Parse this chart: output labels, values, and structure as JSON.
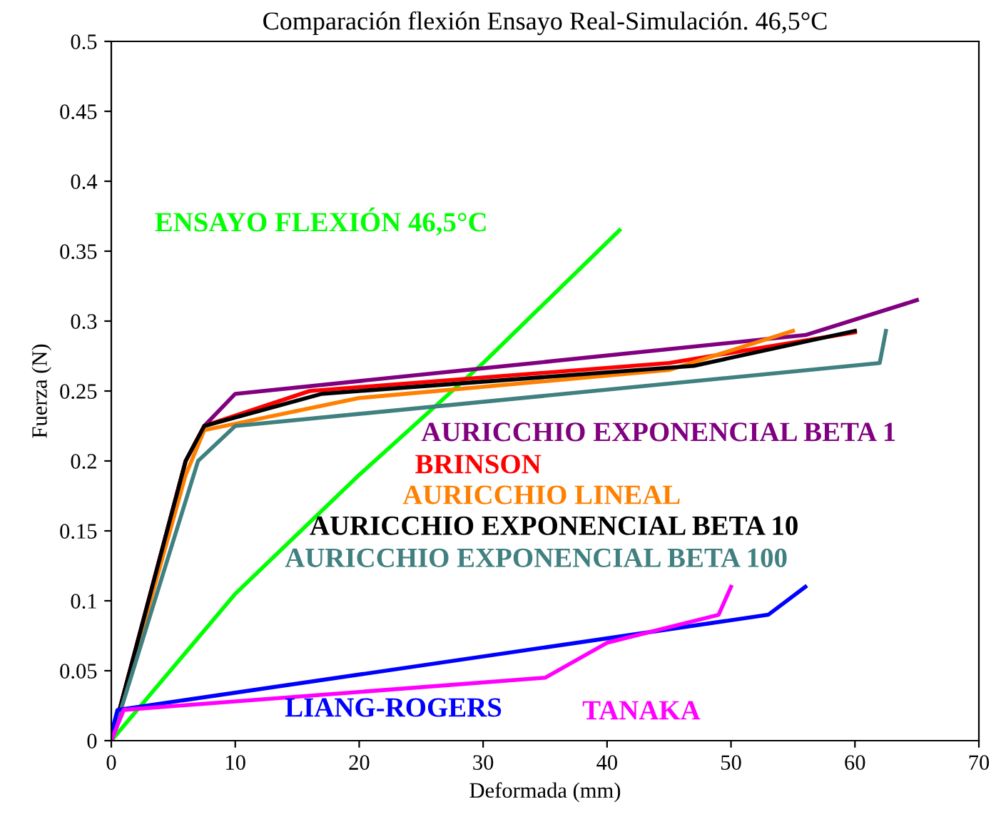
{
  "chart_data": {
    "type": "line",
    "title": "Comparación flexión Ensayo Real-Simulación. 46,5°C",
    "xlabel": "Deformada (mm)",
    "ylabel": "Fuerza (N)",
    "xlim": [
      0,
      70
    ],
    "ylim": [
      0,
      0.5
    ],
    "xticks": [
      0,
      10,
      20,
      30,
      40,
      50,
      60,
      70
    ],
    "yticks": [
      0,
      0.05,
      0.1,
      0.15,
      0.2,
      0.25,
      0.3,
      0.35,
      0.4,
      0.45,
      0.5
    ],
    "grid": false,
    "legend": false,
    "marker": "none",
    "line_style": "solid",
    "series": [
      {
        "name": "ENSAYO FLEXIÓN 46,5°C",
        "color": "#00ff00",
        "x": [
          0,
          10,
          20,
          30,
          41
        ],
        "values": [
          0,
          0.105,
          0.19,
          0.27,
          0.365
        ]
      },
      {
        "name": "AURICCHIO EXPONENCIAL BETA 1",
        "color": "#800080",
        "x": [
          0,
          6,
          7.5,
          10,
          56,
          65
        ],
        "values": [
          0,
          0.2,
          0.225,
          0.248,
          0.29,
          0.315
        ]
      },
      {
        "name": "BRINSON",
        "color": "#ff0000",
        "x": [
          0,
          6,
          7.5,
          16,
          45,
          60
        ],
        "values": [
          0,
          0.2,
          0.225,
          0.25,
          0.27,
          0.292
        ]
      },
      {
        "name": "AURICCHIO LINEAL",
        "color": "#ff8000",
        "x": [
          0,
          6,
          7.5,
          20,
          45,
          55
        ],
        "values": [
          0,
          0.19,
          0.222,
          0.245,
          0.265,
          0.293
        ]
      },
      {
        "name": "AURICCHIO EXPONENCIAL BETA 10",
        "color": "#000000",
        "x": [
          0,
          6,
          7.5,
          17,
          47,
          60
        ],
        "values": [
          0,
          0.2,
          0.225,
          0.248,
          0.268,
          0.293
        ]
      },
      {
        "name": "AURICCHIO EXPONENCIAL BETA 100",
        "color": "#408080",
        "x": [
          0,
          7,
          10,
          62,
          62.5
        ],
        "values": [
          0,
          0.2,
          0.225,
          0.27,
          0.293
        ]
      },
      {
        "name": "LIANG-ROGERS",
        "color": "#0000ff",
        "x": [
          0,
          0.5,
          53,
          56
        ],
        "values": [
          0.005,
          0.022,
          0.09,
          0.11
        ]
      },
      {
        "name": "TANAKA",
        "color": "#ff00ff",
        "x": [
          0,
          1,
          35,
          40,
          49,
          50
        ],
        "values": [
          0,
          0.022,
          0.045,
          0.07,
          0.09,
          0.11
        ]
      }
    ]
  }
}
